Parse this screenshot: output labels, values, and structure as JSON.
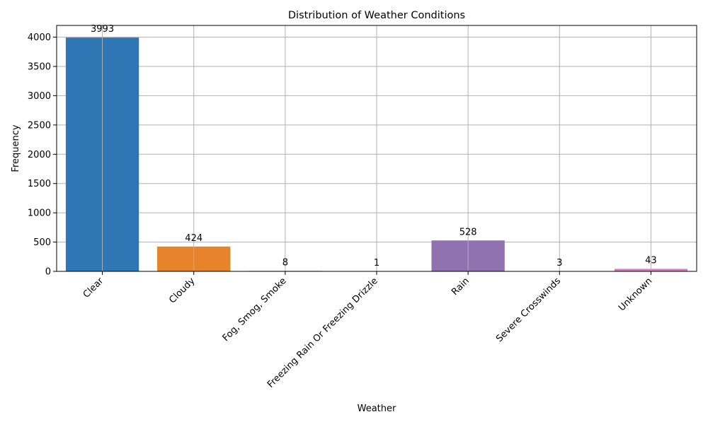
{
  "chart_data": {
    "type": "bar",
    "title": "Distribution of Weather Conditions",
    "xlabel": "Weather",
    "ylabel": "Frequency",
    "categories": [
      "Clear",
      "Cloudy",
      "Fog, Smog, Smoke",
      "Freezing Rain Or Freezing Drizzle",
      "Rain",
      "Severe Crosswinds",
      "Unknown"
    ],
    "values": [
      3993,
      424,
      8,
      1,
      528,
      3,
      43
    ],
    "data_labels": [
      "3993",
      "424",
      "8",
      "1",
      "528",
      "3",
      "43"
    ],
    "colors": [
      "#2f77b4",
      "#e6832b",
      "#3a9b3a",
      "#d13b3b",
      "#9072b0",
      "#8c564b",
      "#d67fc0"
    ],
    "ylim": [
      0,
      4200
    ],
    "yticks": [
      0,
      500,
      1000,
      1500,
      2000,
      2500,
      3000,
      3500,
      4000
    ],
    "ytick_labels": [
      "0",
      "500",
      "1000",
      "1500",
      "2000",
      "2500",
      "3000",
      "3500",
      "4000"
    ],
    "grid": true,
    "legend": "none"
  }
}
